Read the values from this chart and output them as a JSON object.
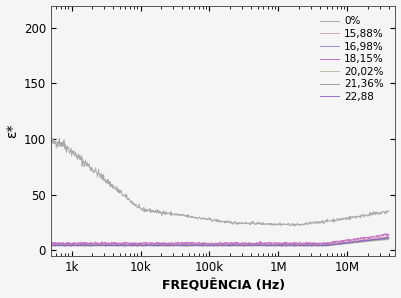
{
  "title": "",
  "xlabel": "FREQUÊNCIA (Hz)",
  "ylabel": "ε*",
  "xlim": [
    500,
    50000000
  ],
  "ylim": [
    -5,
    220
  ],
  "yticks": [
    0,
    50,
    100,
    150,
    200
  ],
  "series": [
    {
      "label": "0%",
      "color": "#aaaaaa"
    },
    {
      "label": "15,88%",
      "color": "#d4a0a8"
    },
    {
      "label": "16,98%",
      "color": "#8888cc"
    },
    {
      "label": "18,15%",
      "color": "#c060c0"
    },
    {
      "label": "20,02%",
      "color": "#b8b8a0"
    },
    {
      "label": "21,36%",
      "color": "#999999"
    },
    {
      "label": "22,88",
      "color": "#9060c8"
    }
  ],
  "background_color": "#f5f5f5",
  "legend_fontsize": 7.5,
  "axis_label_fontsize": 9,
  "tick_fontsize": 8.5
}
